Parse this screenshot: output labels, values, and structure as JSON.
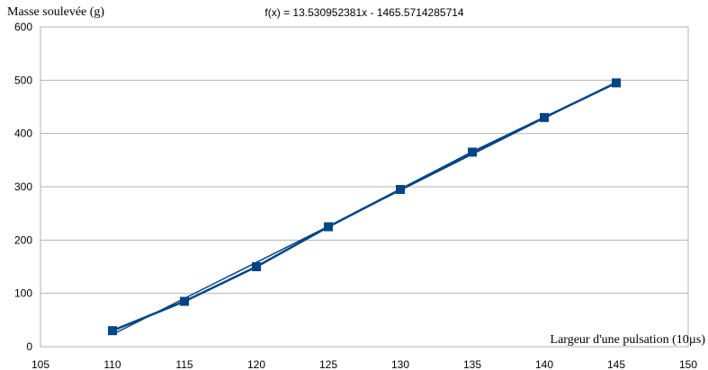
{
  "chart_data": {
    "type": "scatter",
    "title": "f(x) = 13.530952381x - 1465.5714285714",
    "ylabel": "Masse soulevée (g)",
    "xlabel": "Largeur d'une pulsation (10µs)",
    "xlim": [
      105,
      150
    ],
    "ylim": [
      0,
      600
    ],
    "xticks": [
      105,
      110,
      115,
      120,
      125,
      130,
      135,
      140,
      145,
      150
    ],
    "yticks": [
      0,
      100,
      200,
      300,
      400,
      500,
      600
    ],
    "grid": true,
    "series": [
      {
        "x": [
          110,
          115,
          120,
          125,
          130,
          135,
          140,
          145
        ],
        "values": [
          30,
          85,
          150,
          225,
          295,
          365,
          430,
          495
        ],
        "color": "#004586",
        "marker": "square"
      }
    ],
    "trendline": {
      "slope": 13.530952381,
      "intercept": -1465.5714285714,
      "x_range": [
        110,
        145
      ],
      "color": "#004586"
    }
  }
}
